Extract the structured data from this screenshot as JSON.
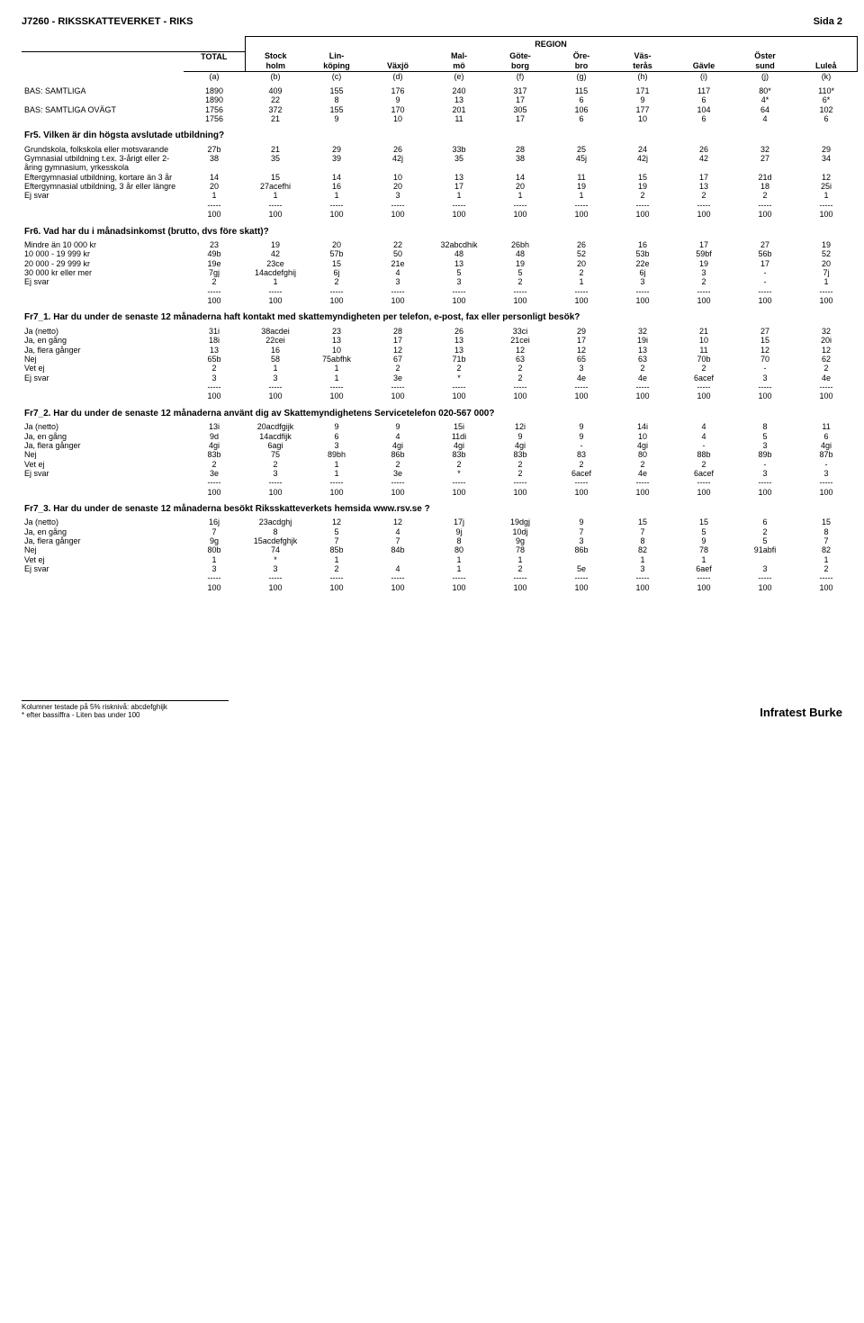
{
  "page": {
    "title_left": "J7260 - RIKSSKATTEVERKET - RIKS",
    "title_right": "Sida 2",
    "region_label": "REGION",
    "footer_left_l1": "Kolumner testade på 5% risknivå: abcdefghijk",
    "footer_left_l2": "* efter bassiffra - Liten bas under 100",
    "footer_right": "Infratest Burke"
  },
  "columns": {
    "labels_top": [
      "",
      "TOTAL",
      "Stock",
      "Lin-",
      "",
      "Mal-",
      "Göte-",
      "Öre-",
      "Väs-",
      "",
      "Öster",
      ""
    ],
    "labels_bottom": [
      "",
      "",
      "holm",
      "köping",
      "Växjö",
      "mö",
      "borg",
      "bro",
      "terås",
      "Gävle",
      "sund",
      "Luleå"
    ],
    "letters": [
      "(a)",
      "(b)",
      "(c)",
      "(d)",
      "(e)",
      "(f)",
      "(g)",
      "(h)",
      "(i)",
      "(j)",
      "(k)"
    ]
  },
  "bas": {
    "r1_label": "BAS: SAMTLIGA",
    "r1": [
      "1890",
      "409",
      "155",
      "176",
      "240",
      "317",
      "115",
      "171",
      "117",
      "80*",
      "110*"
    ],
    "r2": [
      "1890",
      "22",
      "8",
      "9",
      "13",
      "17",
      "6",
      "9",
      "6",
      "4*",
      "6*"
    ],
    "r3_label": "BAS: SAMTLIGA OVÄGT",
    "r3": [
      "1756",
      "372",
      "155",
      "170",
      "201",
      "305",
      "106",
      "177",
      "104",
      "64",
      "102"
    ],
    "r4": [
      "1756",
      "21",
      "9",
      "10",
      "11",
      "17",
      "6",
      "10",
      "6",
      "4",
      "6"
    ]
  },
  "fr5": {
    "title": "Fr5. Vilken är din högsta avslutade utbildning?",
    "rows": [
      {
        "l": "Grundskola, folkskola eller motsvarande",
        "v": [
          "27b",
          "21",
          "29",
          "26",
          "33b",
          "28",
          "25",
          "24",
          "26",
          "32",
          "29"
        ]
      },
      {
        "l": "Gymnasial utbildning t.ex. 3-årigt eller 2-åring gymnasium, yrkesskola",
        "v": [
          "38",
          "35",
          "39",
          "42j",
          "35",
          "38",
          "45j",
          "42j",
          "42",
          "27",
          "34"
        ]
      },
      {
        "l": "Eftergymnasial utbildning, kortare än 3 år",
        "v": [
          "14",
          "15",
          "14",
          "10",
          "13",
          "14",
          "11",
          "15",
          "17",
          "21d",
          "12"
        ]
      },
      {
        "l": "Eftergymnasial utbildning, 3 år eller längre",
        "v": [
          "20",
          "27acefhi",
          "16",
          "20",
          "17",
          "20",
          "19",
          "19",
          "13",
          "18",
          "25i"
        ]
      },
      {
        "l": "Ej svar",
        "v": [
          "1",
          "1",
          "1",
          "3",
          "1",
          "1",
          "1",
          "2",
          "2",
          "2",
          "1"
        ]
      }
    ],
    "tot": [
      "100",
      "100",
      "100",
      "100",
      "100",
      "100",
      "100",
      "100",
      "100",
      "100",
      "100"
    ]
  },
  "fr6": {
    "title": "Fr6. Vad har du i månadsinkomst (brutto, dvs före skatt)?",
    "rows": [
      {
        "l": "Mindre än 10 000 kr",
        "v": [
          "23",
          "19",
          "20",
          "22",
          "32abcdhik",
          "26bh",
          "26",
          "16",
          "17",
          "27",
          "19"
        ]
      },
      {
        "l": "10 000 - 19 999 kr",
        "v": [
          "49b",
          "42",
          "57b",
          "50",
          "48",
          "48",
          "52",
          "53b",
          "59bf",
          "56b",
          "52"
        ]
      },
      {
        "l": "20 000 - 29 999 kr",
        "v": [
          "19e",
          "23ce",
          "15",
          "21e",
          "13",
          "19",
          "20",
          "22e",
          "19",
          "17",
          "20"
        ]
      },
      {
        "l": "30 000 kr eller mer",
        "v": [
          "7gj",
          "14acdefghij",
          "6j",
          "4",
          "5",
          "5",
          "2",
          "6j",
          "3",
          "-",
          "7j"
        ]
      },
      {
        "l": "Ej svar",
        "v": [
          "2",
          "1",
          "2",
          "3",
          "3",
          "2",
          "1",
          "3",
          "2",
          "-",
          "1"
        ]
      }
    ],
    "tot": [
      "100",
      "100",
      "100",
      "100",
      "100",
      "100",
      "100",
      "100",
      "100",
      "100",
      "100"
    ]
  },
  "fr7_1": {
    "title": "Fr7_1. Har du under de senaste 12 månaderna haft kontakt med skattemyndigheten per telefon, e-post, fax eller personligt besök?",
    "rows": [
      {
        "l": "Ja (netto)",
        "v": [
          "31i",
          "38acdei",
          "23",
          "28",
          "26",
          "33ci",
          "29",
          "32",
          "21",
          "27",
          "32"
        ]
      },
      {
        "l": "Ja, en gång",
        "v": [
          "18i",
          "22cei",
          "13",
          "17",
          "13",
          "21cei",
          "17",
          "19i",
          "10",
          "15",
          "20i"
        ]
      },
      {
        "l": "Ja, flera gånger",
        "v": [
          "13",
          "16",
          "10",
          "12",
          "13",
          "12",
          "12",
          "13",
          "11",
          "12",
          "12"
        ]
      },
      {
        "l": "Nej",
        "v": [
          "65b",
          "58",
          "75abfhk",
          "67",
          "71b",
          "63",
          "65",
          "63",
          "70b",
          "70",
          "62"
        ]
      },
      {
        "l": "Vet ej",
        "v": [
          "2",
          "1",
          "1",
          "2",
          "2",
          "2",
          "3",
          "2",
          "2",
          "-",
          "2"
        ]
      },
      {
        "l": "Ej svar",
        "v": [
          "3",
          "3",
          "1",
          "3e",
          "*",
          "2",
          "4e",
          "4e",
          "6acef",
          "3",
          "4e"
        ]
      }
    ],
    "tot": [
      "100",
      "100",
      "100",
      "100",
      "100",
      "100",
      "100",
      "100",
      "100",
      "100",
      "100"
    ]
  },
  "fr7_2": {
    "title": "Fr7_2. Har du under de senaste 12 månaderna använt dig av Skattemyndighetens Servicetelefon 020-567 000?",
    "rows": [
      {
        "l": "Ja (netto)",
        "v": [
          "13i",
          "20acdfgijk",
          "9",
          "9",
          "15i",
          "12i",
          "9",
          "14i",
          "4",
          "8",
          "11"
        ]
      },
      {
        "l": "Ja, en gång",
        "v": [
          "9d",
          "14acdfijk",
          "6",
          "4",
          "11di",
          "9",
          "9",
          "10",
          "4",
          "5",
          "6"
        ]
      },
      {
        "l": "Ja, flera gånger",
        "v": [
          "4gi",
          "6agi",
          "3",
          "4gi",
          "4gi",
          "4gi",
          "-",
          "4gi",
          "-",
          "3",
          "4gi"
        ]
      },
      {
        "l": "Nej",
        "v": [
          "83b",
          "75",
          "89bh",
          "86b",
          "83b",
          "83b",
          "83",
          "80",
          "88b",
          "89b",
          "87b"
        ]
      },
      {
        "l": "Vet ej",
        "v": [
          "2",
          "2",
          "1",
          "2",
          "2",
          "2",
          "2",
          "2",
          "2",
          "-",
          "-"
        ]
      },
      {
        "l": "Ej svar",
        "v": [
          "3e",
          "3",
          "1",
          "3e",
          "*",
          "2",
          "6acef",
          "4e",
          "6acef",
          "3",
          "3"
        ]
      }
    ],
    "tot": [
      "100",
      "100",
      "100",
      "100",
      "100",
      "100",
      "100",
      "100",
      "100",
      "100",
      "100"
    ]
  },
  "fr7_3": {
    "title": "Fr7_3. Har du under de senaste 12 månaderna besökt Riksskatteverkets hemsida www.rsv.se ?",
    "rows": [
      {
        "l": "Ja (netto)",
        "v": [
          "16j",
          "23acdghj",
          "12",
          "12",
          "17j",
          "19dgj",
          "9",
          "15",
          "15",
          "6",
          "15"
        ]
      },
      {
        "l": "Ja, en gång",
        "v": [
          "7",
          "8",
          "5",
          "4",
          "9j",
          "10dj",
          "7",
          "7",
          "5",
          "2",
          "8"
        ]
      },
      {
        "l": "Ja, flera gånger",
        "v": [
          "9g",
          "15acdefghjk",
          "7",
          "7",
          "8",
          "9g",
          "3",
          "8",
          "9",
          "5",
          "7"
        ]
      },
      {
        "l": "Nej",
        "v": [
          "80b",
          "74",
          "85b",
          "84b",
          "80",
          "78",
          "86b",
          "82",
          "78",
          "91abfi",
          "82"
        ]
      },
      {
        "l": "Vet ej",
        "v": [
          "1",
          "*",
          "1",
          "",
          "1",
          "1",
          "",
          "1",
          "1",
          "",
          "1"
        ]
      },
      {
        "l": "Ej svar",
        "v": [
          "3",
          "3",
          "2",
          "4",
          "1",
          "2",
          "5e",
          "3",
          "6aef",
          "3",
          "2"
        ]
      }
    ],
    "tot": [
      "100",
      "100",
      "100",
      "100",
      "100",
      "100",
      "100",
      "100",
      "100",
      "100",
      "100"
    ]
  }
}
